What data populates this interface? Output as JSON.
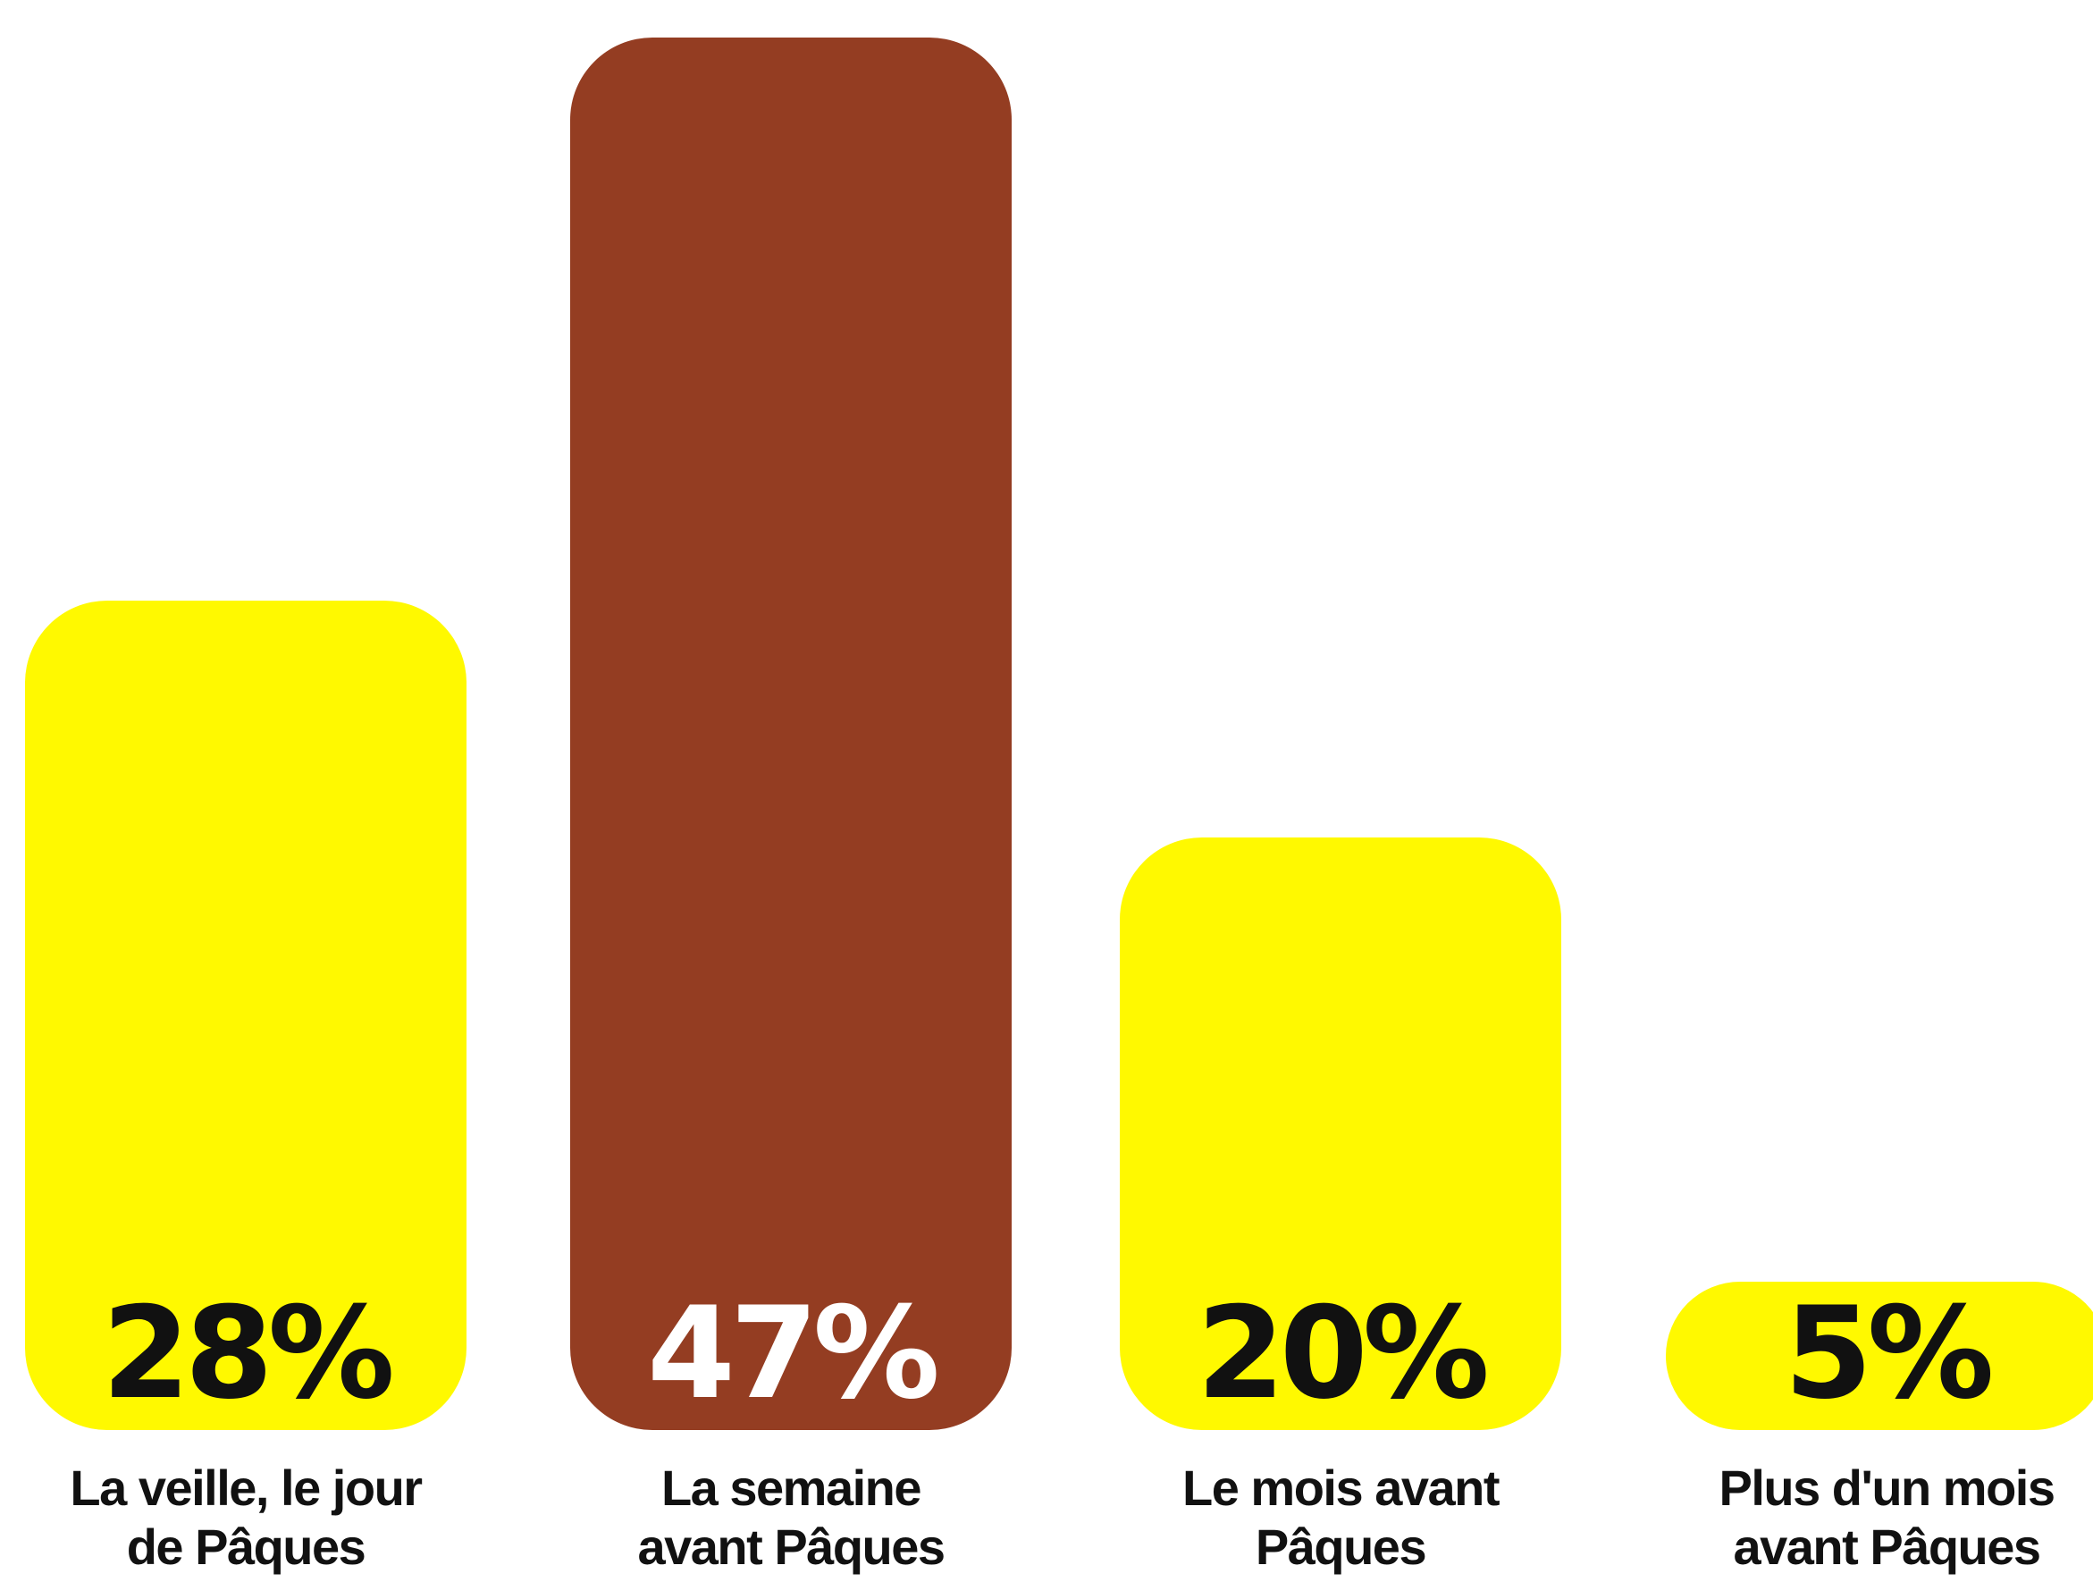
{
  "chart_data": {
    "type": "bar",
    "categories": [
      "La veille, le jour de Pâques",
      "La semaine avant Pâques",
      "Le mois avant Pâques",
      "Plus d'un mois avant Pâques"
    ],
    "category_lines": [
      [
        "La veille, le jour",
        "de Pâques"
      ],
      [
        "La semaine",
        "avant Pâques"
      ],
      [
        "Le mois avant",
        "Pâques"
      ],
      [
        "Plus d'un mois",
        "avant Pâques"
      ]
    ],
    "values": [
      28,
      47,
      20,
      5
    ],
    "value_labels": [
      "28%",
      "47%",
      "20%",
      "5%"
    ],
    "unit": "%",
    "ylim": [
      0,
      47
    ],
    "grid": false,
    "legend": "none",
    "bar_colors": [
      "#FFF900",
      "#943D22",
      "#FFF900",
      "#FFF900"
    ],
    "label_colors": [
      "#111111",
      "#FFFFFF",
      "#111111",
      "#111111"
    ]
  }
}
